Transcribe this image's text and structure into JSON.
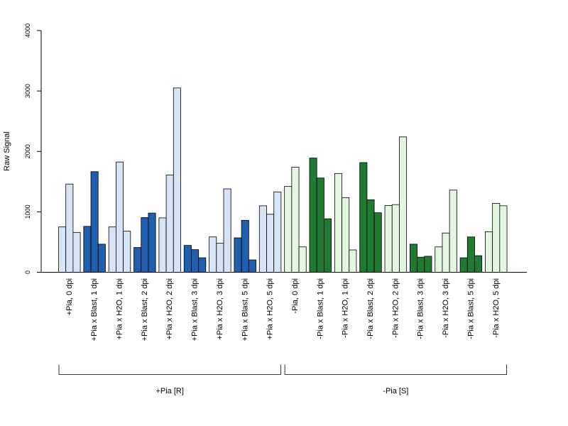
{
  "chart_data": {
    "type": "bar",
    "ylabel": "Raw Signal",
    "ylim": [
      0,
      4000
    ],
    "yticks": [
      0,
      1000,
      2000,
      3000,
      4000
    ],
    "categories": [
      "+Pia, 0 dpi",
      "+Pia x Blast, 1 dpi",
      "+Pia x H2O, 1 dpi",
      "+Pia x Blast, 2 dpi",
      "+Pia x H2O, 2 dpi",
      "+Pia x Blast, 3 dpi",
      "+Pia x H2O, 3 dpi",
      "+Pia x Blast, 5 dpi",
      "+Pia x H2O, 5 dpi",
      "-Pia, 0 dpi",
      "-Pia x Blast, 1 dpi",
      "-Pia x H2O, 1 dpi",
      "-Pia x Blast, 2 dpi",
      "-Pia x H2O, 2 dpi",
      "-Pia x Blast, 3 dpi",
      "-Pia x H2O, 3 dpi",
      "-Pia x Blast, 5 dpi",
      "-Pia x H2O, 5 dpi"
    ],
    "values": [
      [
        750,
        1460,
        660
      ],
      [
        760,
        1665,
        465
      ],
      [
        750,
        1825,
        680
      ],
      [
        410,
        905,
        980
      ],
      [
        900,
        1610,
        3050
      ],
      [
        445,
        375,
        240
      ],
      [
        585,
        480,
        1380
      ],
      [
        570,
        860,
        205
      ],
      [
        1100,
        960,
        1330
      ],
      [
        1420,
        1740,
        420
      ],
      [
        1890,
        1560,
        885
      ],
      [
        1635,
        1235,
        370
      ],
      [
        1815,
        1200,
        985
      ],
      [
        1105,
        1120,
        2240
      ],
      [
        465,
        250,
        265
      ],
      [
        420,
        650,
        1360
      ],
      [
        240,
        585,
        275
      ],
      [
        670,
        1140,
        1100
      ]
    ],
    "bar_colors": [
      "#d6e4f5",
      "#1f5fae",
      "#d6e4f5",
      "#1f5fae",
      "#d6e4f5",
      "#1f5fae",
      "#d6e4f5",
      "#1f5fae",
      "#d6e4f5",
      "#e3f6df",
      "#217a32",
      "#e3f6df",
      "#217a32",
      "#e3f6df",
      "#217a32",
      "#e3f6df",
      "#217a32",
      "#e3f6df"
    ],
    "groups": [
      {
        "label": "+Pia [R]",
        "first": 0,
        "last": 8
      },
      {
        "label": "-Pia [S]",
        "first": 9,
        "last": 17
      }
    ]
  }
}
